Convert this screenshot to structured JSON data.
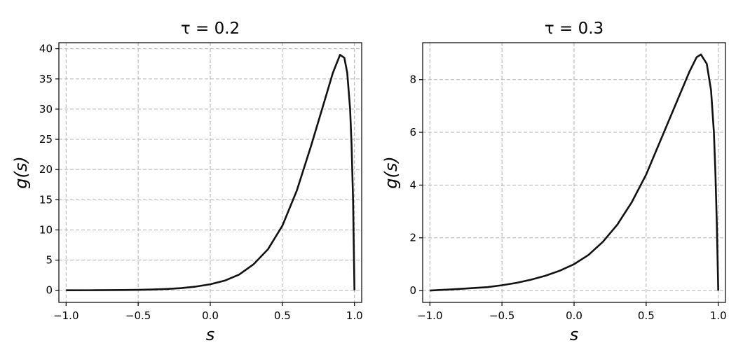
{
  "chart_data": [
    {
      "type": "line",
      "title": "τ = 0.2",
      "xlabel": "s",
      "ylabel": "g(s)",
      "xlim": [
        -1.05,
        1.05
      ],
      "ylim": [
        -2,
        41
      ],
      "xticks": [
        -1.0,
        -0.5,
        0.0,
        0.5,
        1.0
      ],
      "xtick_labels": [
        "−1.0",
        "−0.5",
        "0.0",
        "0.5",
        "1.0"
      ],
      "yticks": [
        0,
        5,
        10,
        15,
        20,
        25,
        30,
        35,
        40
      ],
      "ytick_labels": [
        "0",
        "5",
        "10",
        "15",
        "20",
        "25",
        "30",
        "35",
        "40"
      ],
      "grid": true,
      "line_color": "#111111",
      "series": [
        {
          "x": [
            -1.0,
            -0.8,
            -0.6,
            -0.5,
            -0.4,
            -0.3,
            -0.2,
            -0.1,
            0.0,
            0.1,
            0.2,
            0.3,
            0.4,
            0.5,
            0.6,
            0.7,
            0.8,
            0.85,
            0.9,
            0.93,
            0.95,
            0.97,
            0.98,
            0.99,
            1.0
          ],
          "y": [
            0.0,
            0.02,
            0.05,
            0.08,
            0.13,
            0.22,
            0.37,
            0.62,
            1.0,
            1.6,
            2.6,
            4.3,
            6.8,
            10.7,
            16.5,
            24.0,
            32.0,
            36.0,
            39.0,
            38.5,
            36.0,
            30.0,
            24.0,
            15.0,
            0.0
          ]
        }
      ]
    },
    {
      "type": "line",
      "title": "τ = 0.3",
      "xlabel": "s",
      "ylabel": "g(s)",
      "xlim": [
        -1.05,
        1.05
      ],
      "ylim": [
        -0.45,
        9.4
      ],
      "xticks": [
        -1.0,
        -0.5,
        0.0,
        0.5,
        1.0
      ],
      "xtick_labels": [
        "−1.0",
        "−0.5",
        "0.0",
        "0.5",
        "1.0"
      ],
      "yticks": [
        0,
        2,
        4,
        6,
        8
      ],
      "ytick_labels": [
        "0",
        "2",
        "4",
        "6",
        "8"
      ],
      "grid": true,
      "line_color": "#111111",
      "series": [
        {
          "x": [
            -1.0,
            -0.8,
            -0.6,
            -0.5,
            -0.4,
            -0.3,
            -0.2,
            -0.1,
            0.0,
            0.1,
            0.2,
            0.3,
            0.4,
            0.5,
            0.6,
            0.7,
            0.8,
            0.85,
            0.88,
            0.92,
            0.95,
            0.97,
            0.98,
            0.99,
            1.0
          ],
          "y": [
            0.0,
            0.06,
            0.13,
            0.2,
            0.29,
            0.41,
            0.56,
            0.75,
            1.0,
            1.35,
            1.85,
            2.5,
            3.35,
            4.4,
            5.7,
            7.0,
            8.3,
            8.85,
            8.95,
            8.6,
            7.6,
            6.0,
            4.5,
            2.5,
            0.0
          ]
        }
      ]
    }
  ]
}
